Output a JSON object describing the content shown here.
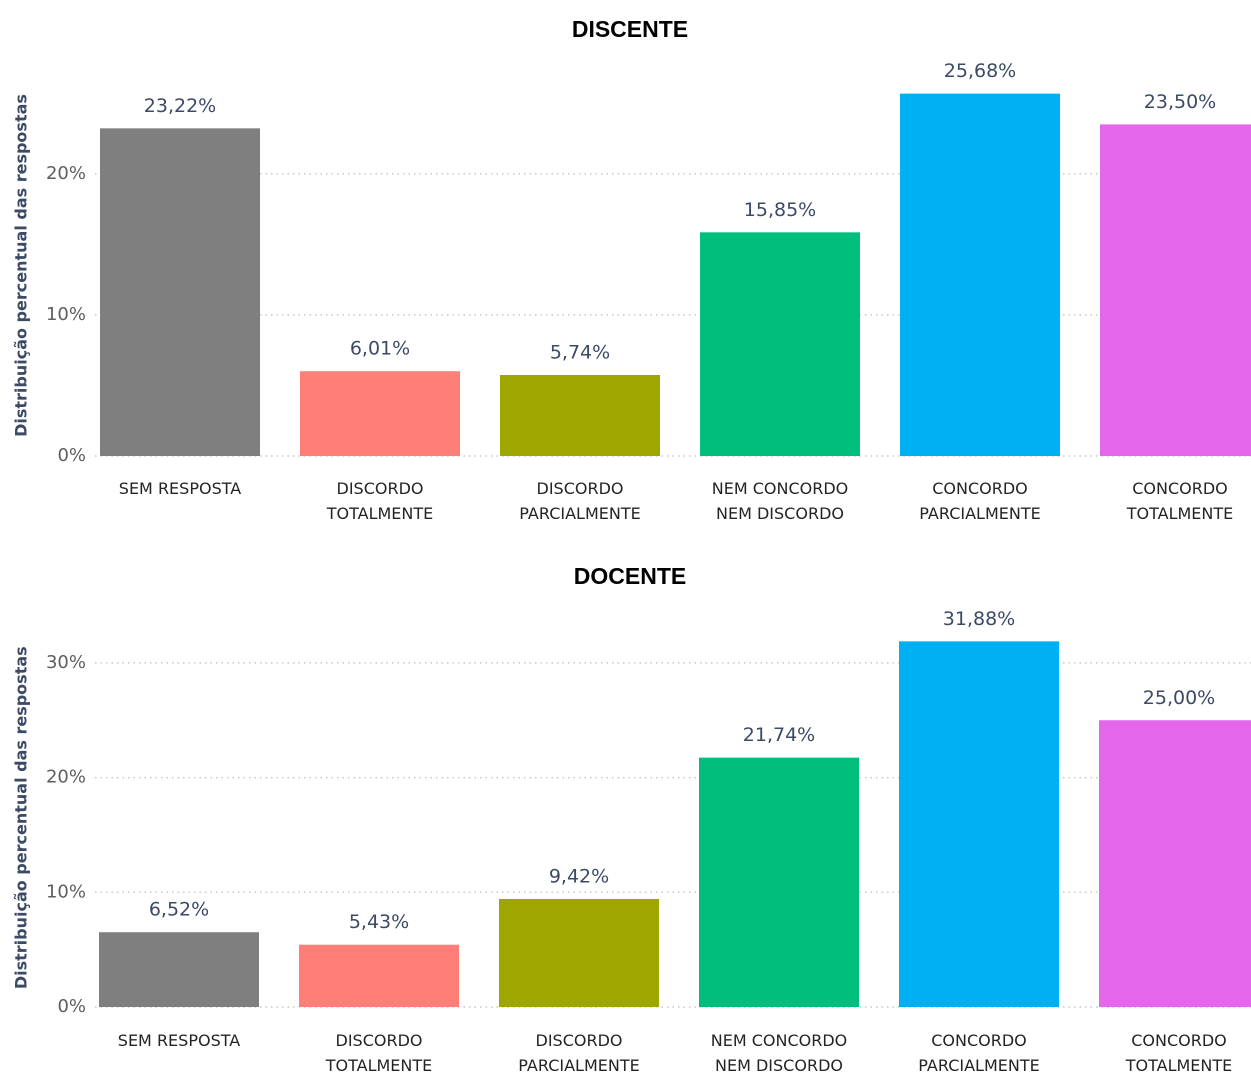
{
  "chart_data": [
    {
      "type": "bar",
      "title": "DISCENTE",
      "y_label": "Distribuição percentual das respostas",
      "categories": [
        "SEM RESPOSTA",
        "DISCORDO TOTALMENTE",
        "DISCORDO PARCIALMENTE",
        "NEM CONCORDO NEM DISCORDO",
        "CONCORDO PARCIALMENTE",
        "CONCORDO TOTALMENTE"
      ],
      "values": [
        23.22,
        6.01,
        5.74,
        15.85,
        25.68,
        23.5
      ],
      "value_labels": [
        "23,22%",
        "6,01%",
        "5,74%",
        "15,85%",
        "25,68%",
        "23,50%"
      ],
      "colors": [
        "#7f7f7f",
        "#fe7f78",
        "#a0a600",
        "#00bf7d",
        "#00b0f2",
        "#e466ea"
      ],
      "ylim": [
        0,
        27
      ],
      "yticks": [
        {
          "value": 0,
          "label": "0%"
        },
        {
          "value": 10,
          "label": "10%"
        },
        {
          "value": 20,
          "label": "20%"
        }
      ],
      "grid": true
    },
    {
      "type": "bar",
      "title": "DOCENTE",
      "y_label": "Distribuição percentual das respostas",
      "categories": [
        "SEM RESPOSTA",
        "DISCORDO TOTALMENTE",
        "DISCORDO PARCIALMENTE",
        "NEM CONCORDO NEM DISCORDO",
        "CONCORDO PARCIALMENTE",
        "CONCORDO TOTALMENTE"
      ],
      "values": [
        6.52,
        5.43,
        9.42,
        21.74,
        31.88,
        25.0
      ],
      "value_labels": [
        "6,52%",
        "5,43%",
        "9,42%",
        "21,74%",
        "31,88%",
        "25,00%"
      ],
      "colors": [
        "#7f7f7f",
        "#fe7f78",
        "#a0a600",
        "#00bf7d",
        "#00b0f2",
        "#e466ea"
      ],
      "ylim": [
        0,
        33
      ],
      "yticks": [
        {
          "value": 0,
          "label": "0%"
        },
        {
          "value": 10,
          "label": "10%"
        },
        {
          "value": 20,
          "label": "20%"
        },
        {
          "value": 30,
          "label": "30%"
        }
      ],
      "grid": true
    }
  ]
}
